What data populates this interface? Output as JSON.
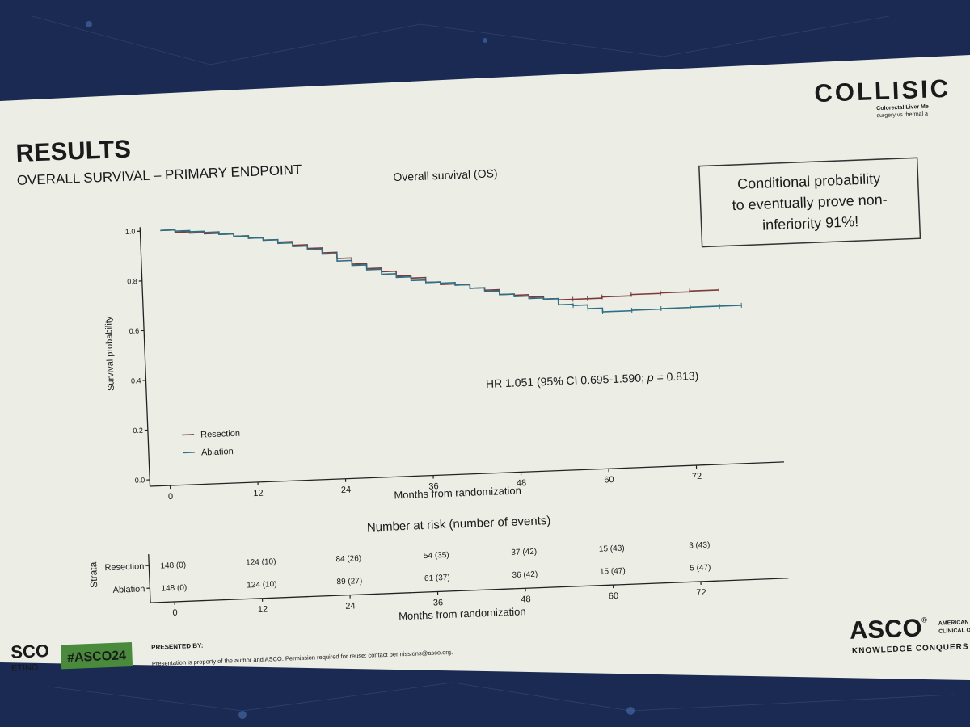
{
  "slide": {
    "heading": "RESULTS",
    "subheading": "OVERALL SURVIVAL – PRIMARY ENDPOINT",
    "logo": {
      "brand": "COLLISIC",
      "tagline1": "Colorectal Liver Me",
      "tagline2": "surgery vs thermal a"
    },
    "callout": {
      "line1": "Conditional probability",
      "line2": "to eventually prove non-",
      "line3": "inferiority 91%!"
    },
    "hr_text": {
      "prefix": "HR 1.051 (95% CI 0.695-1.590; ",
      "p_symbol": "p",
      "suffix": " = 0.813)"
    },
    "footer": {
      "asco_left1": "SCO",
      "asco_left2": "ETING",
      "hashtag": "#ASCO24",
      "presented_by": "PRESENTED BY:",
      "disclaimer": "Presentation is property of the author and ASCO. Permission required for reuse; contact permissions@asco.org.",
      "asco_logo": "ASCO",
      "asco_reg": "®",
      "asco_side1": "AMERICAN S",
      "asco_side2": "CLINICAL ON",
      "asco_slogan": "KNOWLEDGE CONQUERS C"
    },
    "colors": {
      "resection": "#7d3a3a",
      "ablation": "#2e6f86",
      "hashtag_bg": "#4a8a3c",
      "slide_bg": "#ebeee6",
      "stage_bg": "#1b2a52"
    }
  },
  "chart_data": [
    {
      "type": "line",
      "title": "Overall survival (OS)",
      "xlabel": "Months from randomization",
      "ylabel": "Survival probability",
      "xlim": [
        0,
        84
      ],
      "ylim": [
        0,
        1.0
      ],
      "xticks": [
        0,
        12,
        24,
        36,
        48,
        60,
        72
      ],
      "yticks": [
        0.0,
        0.2,
        0.4,
        0.6,
        0.8,
        1.0
      ],
      "ytick_labels": [
        "0.0",
        "0.2",
        "0.4",
        "0.6",
        "0.8",
        "1.0"
      ],
      "legend_position": "bottom-left",
      "series": [
        {
          "name": "Resection",
          "x": [
            0,
            2,
            4,
            6,
            8,
            10,
            12,
            14,
            16,
            18,
            20,
            22,
            24,
            26,
            28,
            30,
            32,
            34,
            36,
            38,
            40,
            42,
            44,
            46,
            48,
            50,
            52,
            54,
            56,
            58,
            60,
            64,
            68,
            72,
            76
          ],
          "y": [
            1.0,
            0.99,
            0.985,
            0.98,
            0.975,
            0.965,
            0.955,
            0.945,
            0.935,
            0.92,
            0.905,
            0.885,
            0.86,
            0.835,
            0.815,
            0.8,
            0.78,
            0.77,
            0.75,
            0.74,
            0.735,
            0.72,
            0.71,
            0.69,
            0.685,
            0.675,
            0.665,
            0.66,
            0.66,
            0.66,
            0.665,
            0.67,
            0.672,
            0.675,
            0.675
          ]
        },
        {
          "name": "Ablation",
          "x": [
            0,
            2,
            4,
            6,
            8,
            10,
            12,
            14,
            16,
            18,
            20,
            22,
            24,
            26,
            28,
            30,
            32,
            34,
            36,
            38,
            40,
            42,
            44,
            46,
            48,
            50,
            52,
            54,
            56,
            58,
            60,
            64,
            68,
            72,
            76,
            79
          ],
          "y": [
            1.0,
            0.995,
            0.99,
            0.985,
            0.975,
            0.965,
            0.955,
            0.945,
            0.93,
            0.915,
            0.9,
            0.88,
            0.85,
            0.83,
            0.81,
            0.79,
            0.775,
            0.76,
            0.75,
            0.745,
            0.735,
            0.72,
            0.705,
            0.69,
            0.68,
            0.67,
            0.665,
            0.64,
            0.635,
            0.62,
            0.605,
            0.607,
            0.609,
            0.61,
            0.61,
            0.61
          ]
        }
      ]
    },
    {
      "type": "table",
      "title": "Number at risk (number of events)",
      "xlabel": "Months from randomization",
      "row_axis_label": "Strata",
      "columns": [
        0,
        12,
        24,
        36,
        48,
        60,
        72
      ],
      "rows": [
        {
          "name": "Resection",
          "cells": [
            "148 (0)",
            "124 (10)",
            "84 (26)",
            "54 (35)",
            "37 (42)",
            "15 (43)",
            "3 (43)"
          ]
        },
        {
          "name": "Ablation",
          "cells": [
            "148 (0)",
            "124 (10)",
            "89 (27)",
            "61 (37)",
            "36 (42)",
            "15 (47)",
            "5 (47)"
          ]
        }
      ]
    }
  ]
}
